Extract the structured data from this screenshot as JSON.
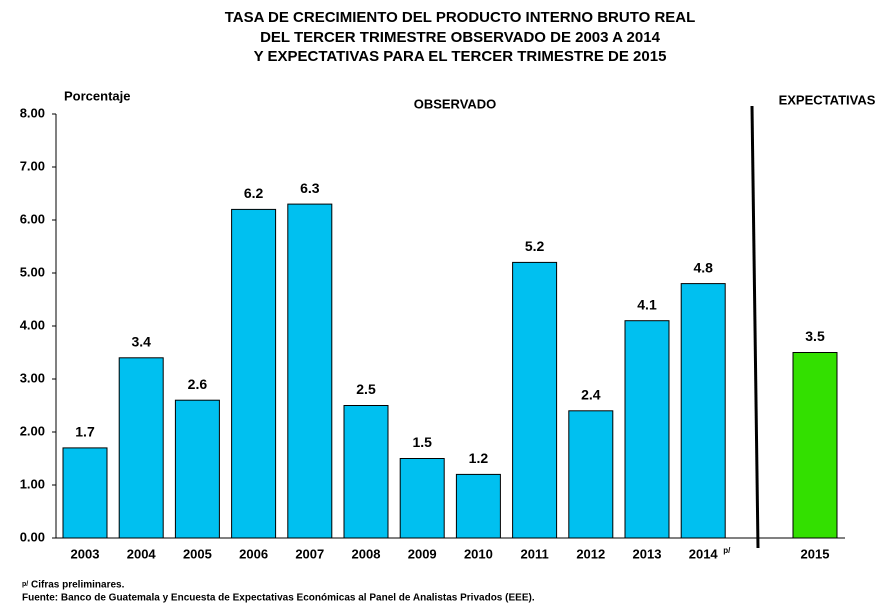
{
  "chart_data": {
    "type": "bar",
    "title": [
      "TASA DE CRECIMIENTO DEL PRODUCTO INTERNO BRUTO REAL",
      "DEL TERCER TRIMESTRE OBSERVADO DE  2003 A  2014",
      "Y EXPECTATIVAS PARA EL TERCER TRIMESTRE DE 2015"
    ],
    "y_label": "Porcentaje",
    "annotations": [
      "OBSERVADO",
      "EXPECTATIVAS"
    ],
    "categories": [
      "2003",
      "2004",
      "2005",
      "2006",
      "2007",
      "2008",
      "2009",
      "2010",
      "2011",
      "2012",
      "2013",
      "2014",
      "2015"
    ],
    "values": [
      1.7,
      3.4,
      2.6,
      6.2,
      6.3,
      2.5,
      1.5,
      1.2,
      5.2,
      2.4,
      4.1,
      4.8,
      3.5
    ],
    "colors": [
      "#00c0f0",
      "#00c0f0",
      "#00c0f0",
      "#00c0f0",
      "#00c0f0",
      "#00c0f0",
      "#00c0f0",
      "#00c0f0",
      "#00c0f0",
      "#00c0f0",
      "#00c0f0",
      "#00c0f0",
      "#33e000"
    ],
    "ylim": [
      0,
      8
    ],
    "yticks": [
      {
        "value": 0,
        "label": "0.00"
      },
      {
        "value": 1,
        "label": "1.00"
      },
      {
        "value": 2,
        "label": "2.00"
      },
      {
        "value": 3,
        "label": "3.00"
      },
      {
        "value": 4,
        "label": "4.00"
      },
      {
        "value": 5,
        "label": "5.00"
      },
      {
        "value": 6,
        "label": "6.00"
      },
      {
        "value": 7,
        "label": "7.00"
      },
      {
        "value": 8,
        "label": "8.00"
      }
    ],
    "grid": false,
    "footnote_marker": "p/",
    "footnotes": [
      "Cifras preliminares.",
      "Fuente:  Banco de Guatemala y Encuesta de Expectativas Económicas al Panel de Analistas Privados (EEE)."
    ]
  }
}
